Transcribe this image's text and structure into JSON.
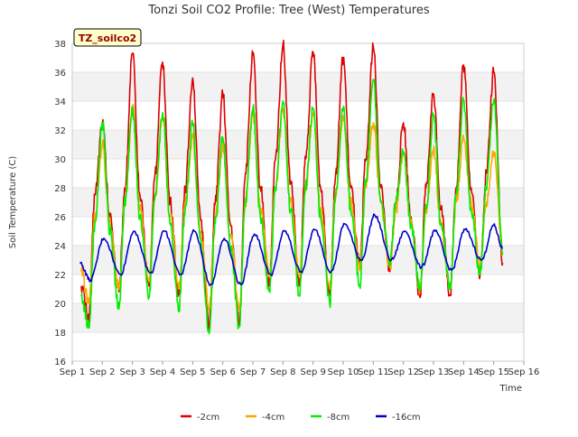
{
  "chart_data": {
    "type": "line",
    "title": "Tonzi Soil CO2 Profile: Tree (West) Temperatures",
    "xlabel": "Time",
    "ylabel": "Soil Temperature (C)",
    "annotation": "TZ_soilco2",
    "x_ticks": [
      "Sep 1",
      "Sep 2",
      "Sep 3",
      "Sep 4",
      "Sep 5",
      "Sep 6",
      "Sep 7",
      "Sep 8",
      "Sep 9",
      "Sep 10",
      "Sep 11",
      "Sep 12",
      "Sep 13",
      "Sep 14",
      "Sep 15",
      "Sep 16"
    ],
    "xlim": [
      1,
      16
    ],
    "ylim": [
      16,
      38
    ],
    "y_ticks": [
      16,
      18,
      20,
      22,
      24,
      26,
      28,
      30,
      32,
      34,
      36,
      38
    ],
    "legend_position": "bottom",
    "grid": true,
    "series": [
      {
        "name": "-2cm",
        "color": "#dd0000",
        "points": [
          [
            1.3,
            21.2
          ],
          [
            1.55,
            19.0
          ],
          [
            1.75,
            27.5
          ],
          [
            2.0,
            32.5
          ],
          [
            2.25,
            26.0
          ],
          [
            2.55,
            20.8
          ],
          [
            2.75,
            28.0
          ],
          [
            3.0,
            37.3
          ],
          [
            3.25,
            27.5
          ],
          [
            3.55,
            21.2
          ],
          [
            3.75,
            29.0
          ],
          [
            4.0,
            36.7
          ],
          [
            4.25,
            27.0
          ],
          [
            4.55,
            20.6
          ],
          [
            4.75,
            28.0
          ],
          [
            5.0,
            35.6
          ],
          [
            5.25,
            26.0
          ],
          [
            5.55,
            18.6
          ],
          [
            5.75,
            27.0
          ],
          [
            6.0,
            34.5
          ],
          [
            6.25,
            25.5
          ],
          [
            6.55,
            18.8
          ],
          [
            6.75,
            29.0
          ],
          [
            7.0,
            37.2
          ],
          [
            7.25,
            28.0
          ],
          [
            7.55,
            21.5
          ],
          [
            7.75,
            30.0
          ],
          [
            8.0,
            37.9
          ],
          [
            8.25,
            28.5
          ],
          [
            8.55,
            21.2
          ],
          [
            8.75,
            30.0
          ],
          [
            9.0,
            37.4
          ],
          [
            9.25,
            28.0
          ],
          [
            9.55,
            20.7
          ],
          [
            9.75,
            29.0
          ],
          [
            10.0,
            37.0
          ],
          [
            10.25,
            28.0
          ],
          [
            10.55,
            22.5
          ],
          [
            10.75,
            30.0
          ],
          [
            11.0,
            37.8
          ],
          [
            11.25,
            28.0
          ],
          [
            11.55,
            22.2
          ],
          [
            11.75,
            27.0
          ],
          [
            12.0,
            32.5
          ],
          [
            12.25,
            26.0
          ],
          [
            12.55,
            20.4
          ],
          [
            12.75,
            28.0
          ],
          [
            13.0,
            34.5
          ],
          [
            13.25,
            26.5
          ],
          [
            13.55,
            20.6
          ],
          [
            13.75,
            28.0
          ],
          [
            14.0,
            36.5
          ],
          [
            14.25,
            28.0
          ],
          [
            14.55,
            22.0
          ],
          [
            14.75,
            29.0
          ],
          [
            15.0,
            36.0
          ],
          [
            15.3,
            22.8
          ]
        ]
      },
      {
        "name": "-4cm",
        "color": "#ffa500",
        "points": [
          [
            1.3,
            22.2
          ],
          [
            1.55,
            20.0
          ],
          [
            1.75,
            26.0
          ],
          [
            2.0,
            31.0
          ],
          [
            2.25,
            25.5
          ],
          [
            2.55,
            21.0
          ],
          [
            2.75,
            27.0
          ],
          [
            3.0,
            33.5
          ],
          [
            3.25,
            26.5
          ],
          [
            3.55,
            21.5
          ],
          [
            3.75,
            27.5
          ],
          [
            4.0,
            33.0
          ],
          [
            4.25,
            26.0
          ],
          [
            4.55,
            21.0
          ],
          [
            4.75,
            27.0
          ],
          [
            5.0,
            31.5
          ],
          [
            5.25,
            25.0
          ],
          [
            5.55,
            19.6
          ],
          [
            5.75,
            26.0
          ],
          [
            6.0,
            31.0
          ],
          [
            6.25,
            24.8
          ],
          [
            6.55,
            19.5
          ],
          [
            6.75,
            27.0
          ],
          [
            7.0,
            33.0
          ],
          [
            7.25,
            26.5
          ],
          [
            7.55,
            22.0
          ],
          [
            7.75,
            28.0
          ],
          [
            8.0,
            33.5
          ],
          [
            8.25,
            27.0
          ],
          [
            8.55,
            21.8
          ],
          [
            8.75,
            28.0
          ],
          [
            9.0,
            33.0
          ],
          [
            9.25,
            26.5
          ],
          [
            9.55,
            21.0
          ],
          [
            9.75,
            27.5
          ],
          [
            10.0,
            33.0
          ],
          [
            10.25,
            27.0
          ],
          [
            10.55,
            22.5
          ],
          [
            10.75,
            28.0
          ],
          [
            11.0,
            32.5
          ],
          [
            11.25,
            27.0
          ],
          [
            11.55,
            22.5
          ],
          [
            11.75,
            26.5
          ],
          [
            12.0,
            30.5
          ],
          [
            12.25,
            25.5
          ],
          [
            12.55,
            21.0
          ],
          [
            12.75,
            26.5
          ],
          [
            13.0,
            30.5
          ],
          [
            13.25,
            25.5
          ],
          [
            13.55,
            21.0
          ],
          [
            13.75,
            27.0
          ],
          [
            14.0,
            31.5
          ],
          [
            14.25,
            27.0
          ],
          [
            14.55,
            22.5
          ],
          [
            14.75,
            27.0
          ],
          [
            15.0,
            30.5
          ],
          [
            15.3,
            23.5
          ]
        ]
      },
      {
        "name": "-8cm",
        "color": "#00ee00",
        "points": [
          [
            1.3,
            20.5
          ],
          [
            1.55,
            18.3
          ],
          [
            1.75,
            25.5
          ],
          [
            2.0,
            32.5
          ],
          [
            2.25,
            25.0
          ],
          [
            2.55,
            19.6
          ],
          [
            2.75,
            27.0
          ],
          [
            3.0,
            33.5
          ],
          [
            3.25,
            26.0
          ],
          [
            3.55,
            20.4
          ],
          [
            3.75,
            27.5
          ],
          [
            4.0,
            33.2
          ],
          [
            4.25,
            25.5
          ],
          [
            4.55,
            19.8
          ],
          [
            4.75,
            26.5
          ],
          [
            5.0,
            32.4
          ],
          [
            5.25,
            24.5
          ],
          [
            5.55,
            17.9
          ],
          [
            5.75,
            25.5
          ],
          [
            6.0,
            31.5
          ],
          [
            6.25,
            24.0
          ],
          [
            6.55,
            18.4
          ],
          [
            6.75,
            27.0
          ],
          [
            7.0,
            33.5
          ],
          [
            7.25,
            26.0
          ],
          [
            7.55,
            20.8
          ],
          [
            7.75,
            28.0
          ],
          [
            8.0,
            34.0
          ],
          [
            8.25,
            26.5
          ],
          [
            8.55,
            20.5
          ],
          [
            8.75,
            28.0
          ],
          [
            9.0,
            33.5
          ],
          [
            9.25,
            26.0
          ],
          [
            9.55,
            20.0
          ],
          [
            9.75,
            27.5
          ],
          [
            10.0,
            33.5
          ],
          [
            10.25,
            26.5
          ],
          [
            10.55,
            21.3
          ],
          [
            10.75,
            28.5
          ],
          [
            11.0,
            35.5
          ],
          [
            11.25,
            27.0
          ],
          [
            11.55,
            23.0
          ],
          [
            11.75,
            27.0
          ],
          [
            12.0,
            30.5
          ],
          [
            12.25,
            25.5
          ],
          [
            12.55,
            21.0
          ],
          [
            12.75,
            26.5
          ],
          [
            13.0,
            33.0
          ],
          [
            13.25,
            25.5
          ],
          [
            13.55,
            21.0
          ],
          [
            13.75,
            27.5
          ],
          [
            14.0,
            34.0
          ],
          [
            14.25,
            26.5
          ],
          [
            14.55,
            22.0
          ],
          [
            14.75,
            28.0
          ],
          [
            15.0,
            34.0
          ],
          [
            15.3,
            23.5
          ]
        ]
      },
      {
        "name": "-16cm",
        "color": "#0000cc",
        "points": [
          [
            1.25,
            22.8
          ],
          [
            1.6,
            21.6
          ],
          [
            2.05,
            24.5
          ],
          [
            2.6,
            22.0
          ],
          [
            3.05,
            25.0
          ],
          [
            3.6,
            22.1
          ],
          [
            4.05,
            25.0
          ],
          [
            4.6,
            22.0
          ],
          [
            5.05,
            25.0
          ],
          [
            5.6,
            21.3
          ],
          [
            6.05,
            24.5
          ],
          [
            6.6,
            21.3
          ],
          [
            7.05,
            24.8
          ],
          [
            7.6,
            22.0
          ],
          [
            8.05,
            25.0
          ],
          [
            8.6,
            22.2
          ],
          [
            9.05,
            25.1
          ],
          [
            9.6,
            22.2
          ],
          [
            10.05,
            25.5
          ],
          [
            10.6,
            23.0
          ],
          [
            11.05,
            26.1
          ],
          [
            11.6,
            23.0
          ],
          [
            12.05,
            25.0
          ],
          [
            12.6,
            22.5
          ],
          [
            13.05,
            25.0
          ],
          [
            13.6,
            22.3
          ],
          [
            14.05,
            25.1
          ],
          [
            14.6,
            23.0
          ],
          [
            15.0,
            25.4
          ],
          [
            15.3,
            23.8
          ]
        ]
      }
    ]
  }
}
